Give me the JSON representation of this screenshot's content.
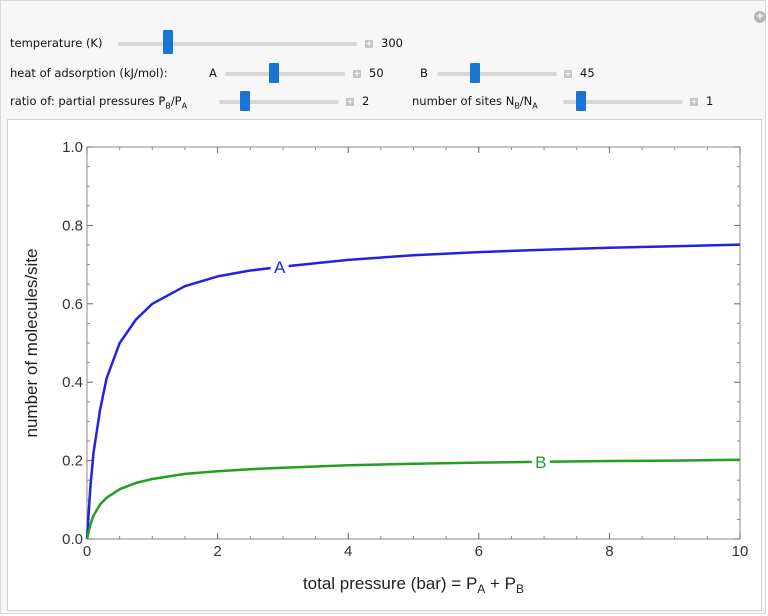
{
  "controls": {
    "temperature": {
      "label": "temperature (K)",
      "value": "300",
      "fraction": 0.2
    },
    "heat_label": "heat of adsorption (kJ/mol):",
    "heat_a": {
      "label": "A",
      "value": "50",
      "fraction": 0.38
    },
    "heat_b": {
      "label": "B",
      "value": "45",
      "fraction": 0.32
    },
    "ratio_label": "ratio of: partial pressures P",
    "ratio_sub_b": "B",
    "ratio_slash": "/P",
    "ratio_sub_a": "A",
    "ratio_pressures": {
      "value": "2",
      "fraction": 0.2
    },
    "sites_label": "number of sites N",
    "sites_sub_b": "B",
    "sites_slash": "/N",
    "sites_sub_a": "A",
    "ratio_sites": {
      "value": "1",
      "fraction": 0.12
    },
    "plus_icon": "plus-icon",
    "accent_color": "#1a74d6"
  },
  "chart_data": {
    "type": "line",
    "xlabel_main": "total pressure (bar) = P",
    "xlabel_sub_a": "A",
    "xlabel_plus": " + P",
    "xlabel_sub_b": "B",
    "ylabel": "number of molecules/site",
    "xlim": [
      0,
      10
    ],
    "ylim": [
      0,
      1.0
    ],
    "x_ticks": [
      "0",
      "2",
      "4",
      "6",
      "8",
      "10"
    ],
    "y_ticks": [
      "0.0",
      "0.2",
      "0.4",
      "0.6",
      "0.8",
      "1.0"
    ],
    "series": [
      {
        "name": "A",
        "color": "#2222e0",
        "label_at_x": 2.95,
        "x": [
          0,
          0.05,
          0.1,
          0.2,
          0.3,
          0.5,
          0.75,
          1.0,
          1.5,
          2.0,
          2.5,
          3.0,
          4.0,
          5.0,
          6.0,
          7.0,
          8.0,
          9.0,
          10.0
        ],
        "y": [
          0,
          0.13,
          0.22,
          0.33,
          0.41,
          0.5,
          0.56,
          0.6,
          0.645,
          0.67,
          0.685,
          0.695,
          0.712,
          0.724,
          0.732,
          0.738,
          0.743,
          0.747,
          0.751
        ]
      },
      {
        "name": "B",
        "color": "#22a022",
        "label_at_x": 6.95,
        "x": [
          0,
          0.05,
          0.1,
          0.2,
          0.3,
          0.5,
          0.75,
          1.0,
          1.5,
          2.0,
          2.5,
          3.0,
          4.0,
          5.0,
          6.0,
          7.0,
          8.0,
          9.0,
          10.0
        ],
        "y": [
          0,
          0.036,
          0.06,
          0.088,
          0.105,
          0.127,
          0.143,
          0.153,
          0.166,
          0.173,
          0.178,
          0.182,
          0.188,
          0.192,
          0.195,
          0.197,
          0.199,
          0.2,
          0.202
        ]
      }
    ],
    "grid": false
  }
}
